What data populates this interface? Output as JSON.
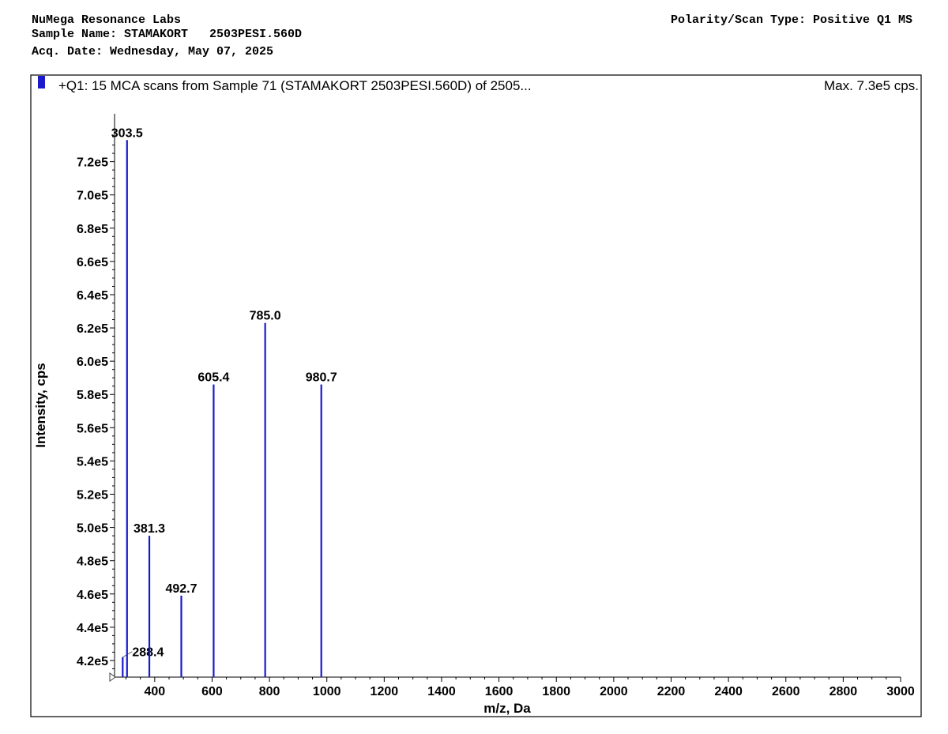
{
  "header": {
    "lab": "NuMega Resonance Labs",
    "sample_name": "Sample Name: STAMAKORT   2503PESI.560D",
    "acq_date": "Acq. Date: Wednesday, May 07, 2025",
    "polarity": "Polarity/Scan Type: Positive Q1 MS"
  },
  "colors": {
    "series": "#1a1acc",
    "frame": "#000000",
    "background": "#ffffff"
  },
  "chart_data": {
    "type": "bar",
    "title": "+Q1: 15 MCA scans from Sample 71 (STAMAKORT   2503PESI.560D) of 2505...",
    "max_label": "Max. 7.3e5 cps.",
    "xlabel": "m/z, Da",
    "ylabel": "Intensity, cps",
    "xlim": [
      260,
      3000
    ],
    "ylim": [
      410000,
      745000
    ],
    "x_ticks": [
      400,
      600,
      800,
      1000,
      1200,
      1400,
      1600,
      1800,
      2000,
      2200,
      2400,
      2600,
      2800,
      3000
    ],
    "y_ticks": [
      {
        "value": 420000,
        "label": "4.2e5"
      },
      {
        "value": 440000,
        "label": "4.4e5"
      },
      {
        "value": 460000,
        "label": "4.6e5"
      },
      {
        "value": 480000,
        "label": "4.8e5"
      },
      {
        "value": 500000,
        "label": "5.0e5"
      },
      {
        "value": 520000,
        "label": "5.2e5"
      },
      {
        "value": 540000,
        "label": "5.4e5"
      },
      {
        "value": 560000,
        "label": "5.6e5"
      },
      {
        "value": 580000,
        "label": "5.8e5"
      },
      {
        "value": 600000,
        "label": "6.0e5"
      },
      {
        "value": 620000,
        "label": "6.2e5"
      },
      {
        "value": 640000,
        "label": "6.4e5"
      },
      {
        "value": 660000,
        "label": "6.6e5"
      },
      {
        "value": 680000,
        "label": "6.8e5"
      },
      {
        "value": 700000,
        "label": "7.0e5"
      },
      {
        "value": 720000,
        "label": "7.2e5"
      }
    ],
    "peaks": [
      {
        "mz": 288.4,
        "intensity": 422000,
        "label": "288.4"
      },
      {
        "mz": 303.5,
        "intensity": 733000,
        "label": "303.5"
      },
      {
        "mz": 381.3,
        "intensity": 495000,
        "label": "381.3"
      },
      {
        "mz": 492.7,
        "intensity": 459000,
        "label": "492.7"
      },
      {
        "mz": 605.4,
        "intensity": 586000,
        "label": "605.4"
      },
      {
        "mz": 785.0,
        "intensity": 623000,
        "label": "785.0"
      },
      {
        "mz": 980.7,
        "intensity": 586000,
        "label": "980.7"
      }
    ]
  }
}
